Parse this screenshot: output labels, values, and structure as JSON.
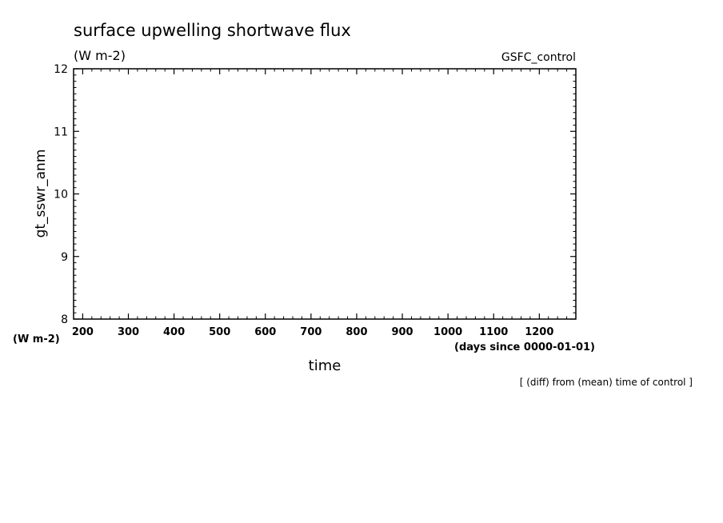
{
  "chart_data": {
    "type": "line",
    "title": "surface upwelling shortwave flux",
    "subtitle": "(W m-2)",
    "experiment": "GSFC_control",
    "xlabel": "time",
    "xunits": "(days since 0000-01-01)",
    "ylabel": "gt_sswr_anm",
    "yunits": "(W m-2)",
    "xlim": [
      180,
      1280
    ],
    "ylim": [
      8,
      12
    ],
    "xticks": [
      200,
      300,
      400,
      500,
      600,
      700,
      800,
      900,
      1000,
      1100,
      1200
    ],
    "xtick_labels": [
      "200",
      "300",
      "400",
      "500",
      "600",
      "700",
      "800",
      "900",
      "1000",
      "1100",
      "1200"
    ],
    "yticks": [
      8,
      9,
      10,
      11,
      12
    ],
    "ytick_labels": [
      "8",
      "9",
      "10",
      "11",
      "12"
    ],
    "series": [],
    "note": "[ (diff) from (mean) time of control ]"
  }
}
